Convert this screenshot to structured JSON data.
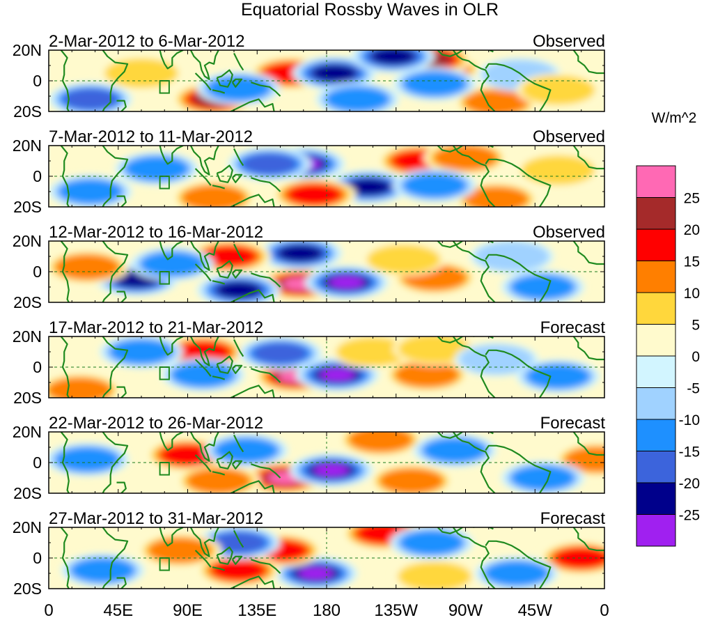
{
  "chart_data": {
    "type": "heatmap",
    "title": "Equatorial Rossby Waves in OLR",
    "colorbar": {
      "units": "W/m^2",
      "bins": [
        {
          "label": "< -25",
          "color": "#a020f0"
        },
        {
          "label": "-25 to -20",
          "color": "#00008b"
        },
        {
          "label": "-20 to -15",
          "color": "#3c64dc"
        },
        {
          "label": "-15 to -10",
          "color": "#1e90ff"
        },
        {
          "label": "-10 to -5",
          "color": "#a0d2ff"
        },
        {
          "label": "-5 to 0",
          "color": "#d2f5ff"
        },
        {
          "label": "0 to 5",
          "color": "#fffacd"
        },
        {
          "label": "5 to 10",
          "color": "#ffd73c"
        },
        {
          "label": "10 to 15",
          "color": "#ff7f00"
        },
        {
          "label": "15 to 20",
          "color": "#ff0000"
        },
        {
          "label": "20 to 25",
          "color": "#a52a2a"
        },
        {
          "label": "> 25",
          "color": "#ff69b4"
        }
      ],
      "tick_labels": [
        "25",
        "20",
        "15",
        "10",
        "5",
        "0",
        "-5",
        "-10",
        "-15",
        "-20",
        "-25"
      ]
    },
    "x_axis": {
      "tick_labels": [
        "0",
        "45E",
        "90E",
        "135E",
        "180",
        "135W",
        "90W",
        "45W",
        "0"
      ],
      "range_deg_east": [
        0,
        360
      ]
    },
    "y_axis": {
      "tick_labels": [
        "20N",
        "0",
        "20S"
      ],
      "range_deg": [
        -20,
        20
      ]
    },
    "panels": [
      {
        "date_range": "2-Mar-2012 to 6-Mar-2012",
        "status": "Observed",
        "anomalies": [
          {
            "lon": 157,
            "lat": 5,
            "value": 18
          },
          {
            "lon": 107,
            "lat": -12,
            "value": 22
          },
          {
            "lon": 253,
            "lat": 8,
            "value": 18
          },
          {
            "lon": 290,
            "lat": -14,
            "value": 14
          },
          {
            "lon": 247,
            "lat": 14,
            "value": 21
          },
          {
            "lon": 185,
            "lat": 5,
            "value": -24
          },
          {
            "lon": 223,
            "lat": 16,
            "value": -21
          },
          {
            "lon": 27,
            "lat": -12,
            "value": -18
          },
          {
            "lon": 250,
            "lat": -2,
            "value": -12
          },
          {
            "lon": 123,
            "lat": -5,
            "value": -10
          },
          {
            "lon": 305,
            "lat": 4,
            "value": -9
          },
          {
            "lon": 330,
            "lat": -6,
            "value": 7
          },
          {
            "lon": 60,
            "lat": 5,
            "value": 8
          },
          {
            "lon": 200,
            "lat": -12,
            "value": -12
          }
        ]
      },
      {
        "date_range": "7-Mar-2012 to 11-Mar-2012",
        "status": "Observed",
        "anomalies": [
          {
            "lon": 165,
            "lat": 8,
            "value": -26
          },
          {
            "lon": 207,
            "lat": -7,
            "value": -23
          },
          {
            "lon": 172,
            "lat": -12,
            "value": 18
          },
          {
            "lon": 107,
            "lat": -14,
            "value": 14
          },
          {
            "lon": 240,
            "lat": 10,
            "value": 15
          },
          {
            "lon": 143,
            "lat": 8,
            "value": -15
          },
          {
            "lon": 270,
            "lat": 12,
            "value": 12
          },
          {
            "lon": 290,
            "lat": -15,
            "value": 12
          },
          {
            "lon": 27,
            "lat": -10,
            "value": -12
          },
          {
            "lon": 70,
            "lat": 5,
            "value": -10
          },
          {
            "lon": 250,
            "lat": -6,
            "value": -10
          },
          {
            "lon": 330,
            "lat": 4,
            "value": 7
          }
        ]
      },
      {
        "date_range": "12-Mar-2012 to 16-Mar-2012",
        "status": "Observed",
        "anomalies": [
          {
            "lon": 163,
            "lat": -8,
            "value": 27
          },
          {
            "lon": 193,
            "lat": -7,
            "value": -27
          },
          {
            "lon": 163,
            "lat": 12,
            "value": -22
          },
          {
            "lon": 117,
            "lat": 10,
            "value": 16
          },
          {
            "lon": 123,
            "lat": -12,
            "value": -20
          },
          {
            "lon": 57,
            "lat": -5,
            "value": -20
          },
          {
            "lon": 250,
            "lat": -4,
            "value": 12
          },
          {
            "lon": 230,
            "lat": 8,
            "value": 7
          },
          {
            "lon": 25,
            "lat": 3,
            "value": 10
          },
          {
            "lon": 80,
            "lat": 5,
            "value": -10
          },
          {
            "lon": 300,
            "lat": 10,
            "value": -8
          },
          {
            "lon": 320,
            "lat": -10,
            "value": -10
          }
        ]
      },
      {
        "date_range": "17-Mar-2012 to 21-Mar-2012",
        "status": "Forecast",
        "anomalies": [
          {
            "lon": 160,
            "lat": -6,
            "value": 26
          },
          {
            "lon": 187,
            "lat": -5,
            "value": -27
          },
          {
            "lon": 100,
            "lat": 10,
            "value": 18
          },
          {
            "lon": 150,
            "lat": 9,
            "value": -15
          },
          {
            "lon": 100,
            "lat": -5,
            "value": -12
          },
          {
            "lon": 245,
            "lat": -5,
            "value": 14
          },
          {
            "lon": 210,
            "lat": 10,
            "value": 8
          },
          {
            "lon": 250,
            "lat": 12,
            "value": 8
          },
          {
            "lon": 60,
            "lat": 10,
            "value": -12
          },
          {
            "lon": 290,
            "lat": 5,
            "value": -8
          },
          {
            "lon": 330,
            "lat": -6,
            "value": -10
          },
          {
            "lon": 20,
            "lat": -15,
            "value": 12
          }
        ]
      },
      {
        "date_range": "22-Mar-2012 to 26-Mar-2012",
        "status": "Forecast",
        "anomalies": [
          {
            "lon": 153,
            "lat": -10,
            "value": 26
          },
          {
            "lon": 183,
            "lat": -5,
            "value": -27
          },
          {
            "lon": 90,
            "lat": 5,
            "value": 16
          },
          {
            "lon": 128,
            "lat": 8,
            "value": -14
          },
          {
            "lon": 235,
            "lat": -12,
            "value": 14
          },
          {
            "lon": 215,
            "lat": 15,
            "value": 12
          },
          {
            "lon": 263,
            "lat": 8,
            "value": -10
          },
          {
            "lon": 355,
            "lat": 2,
            "value": 14
          },
          {
            "lon": 25,
            "lat": 2,
            "value": -10
          },
          {
            "lon": 320,
            "lat": -10,
            "value": -10
          },
          {
            "lon": 110,
            "lat": -12,
            "value": 10
          }
        ]
      },
      {
        "date_range": "27-Mar-2012 to 31-Mar-2012",
        "status": "Forecast",
        "anomalies": [
          {
            "lon": 173,
            "lat": -10,
            "value": -28
          },
          {
            "lon": 150,
            "lat": 5,
            "value": 16
          },
          {
            "lon": 123,
            "lat": -8,
            "value": 18
          },
          {
            "lon": 217,
            "lat": 16,
            "value": 18
          },
          {
            "lon": 123,
            "lat": 10,
            "value": -15
          },
          {
            "lon": 85,
            "lat": 5,
            "value": 12
          },
          {
            "lon": 345,
            "lat": 0,
            "value": 16
          },
          {
            "lon": 248,
            "lat": 10,
            "value": -10
          },
          {
            "lon": 250,
            "lat": -12,
            "value": 8
          },
          {
            "lon": 35,
            "lat": -8,
            "value": -10
          },
          {
            "lon": 303,
            "lat": -10,
            "value": -10
          }
        ]
      }
    ]
  }
}
